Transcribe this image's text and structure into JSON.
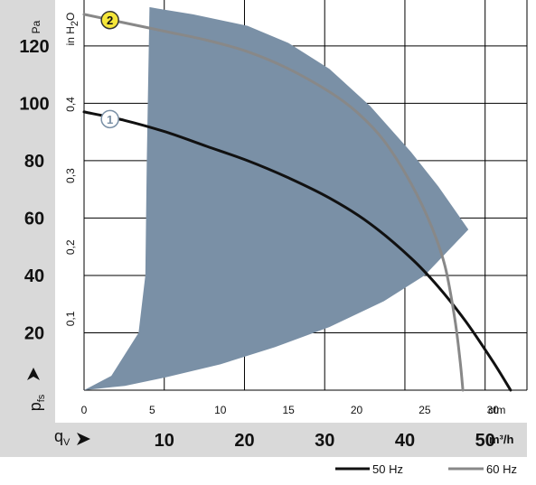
{
  "chart_data": {
    "type": "line",
    "y_left": {
      "label": "Pa",
      "symbol": "p",
      "subscript": "fs",
      "range": [
        0,
        136
      ],
      "ticks": [
        20,
        40,
        60,
        80,
        100,
        120
      ]
    },
    "y_right": {
      "label_main": "in H",
      "label_sub": "2",
      "label_end": "O",
      "range": [
        0,
        0.546
      ],
      "ticks": [
        "0,1",
        "0,2",
        "0,3",
        "0,4"
      ],
      "tick_values": [
        0.1,
        0.2,
        0.3,
        0.4
      ]
    },
    "x_cfm": {
      "label": "cfm",
      "range": [
        0,
        32.5
      ],
      "ticks": [
        0,
        5,
        10,
        15,
        20,
        25,
        30
      ]
    },
    "x_m3h": {
      "symbol": "q",
      "subscript": "V",
      "label": "m³/h",
      "ticks": [
        10,
        20,
        30,
        40,
        50
      ]
    },
    "operating_region": {
      "top_edge": [
        [
          4.8,
          133.5
        ],
        [
          5.4,
          133
        ],
        [
          8,
          131
        ],
        [
          12,
          127
        ],
        [
          15,
          121
        ],
        [
          18,
          112
        ],
        [
          21,
          99
        ],
        [
          24,
          83
        ],
        [
          26,
          71
        ],
        [
          28.2,
          56
        ]
      ],
      "bottom_edge": [
        [
          28.2,
          56
        ],
        [
          25,
          40
        ],
        [
          22,
          31
        ],
        [
          18,
          22
        ],
        [
          14,
          15
        ],
        [
          10,
          9
        ],
        [
          6,
          4.5
        ],
        [
          3,
          1.5
        ],
        [
          0,
          0
        ]
      ],
      "left_edge": [
        [
          0,
          0
        ],
        [
          2,
          5
        ],
        [
          4,
          20
        ],
        [
          4.5,
          40
        ],
        [
          4.6,
          80
        ],
        [
          4.8,
          133.5
        ]
      ]
    },
    "series": [
      {
        "name": "50 Hz",
        "marker": "1",
        "color": "#111111",
        "points": [
          [
            0,
            97
          ],
          [
            3,
            94
          ],
          [
            6,
            90
          ],
          [
            9,
            85
          ],
          [
            12,
            80
          ],
          [
            15,
            74
          ],
          [
            18,
            67
          ],
          [
            21,
            58
          ],
          [
            24,
            46
          ],
          [
            26,
            36
          ],
          [
            28,
            24
          ],
          [
            30,
            10
          ],
          [
            31.3,
            0
          ]
        ]
      },
      {
        "name": "60 Hz",
        "marker": "2",
        "color": "#888888",
        "points": [
          [
            0,
            131
          ],
          [
            3,
            128
          ],
          [
            6,
            125
          ],
          [
            9,
            122
          ],
          [
            12,
            118
          ],
          [
            15,
            112
          ],
          [
            18,
            104
          ],
          [
            20,
            97
          ],
          [
            22,
            87
          ],
          [
            24,
            72
          ],
          [
            25.5,
            57
          ],
          [
            26.5,
            43
          ],
          [
            27.2,
            25
          ],
          [
            27.6,
            10
          ],
          [
            27.8,
            0
          ]
        ]
      }
    ],
    "markers": [
      {
        "label": "1",
        "x": 1.9,
        "y": 94.5,
        "fill": "#ffffff",
        "stroke": "#7a90a6",
        "text_color": "#7a90a6"
      },
      {
        "label": "2",
        "x": 1.9,
        "y": 129,
        "fill": "#f5e63a",
        "stroke": "#333333",
        "text_color": "#111111"
      }
    ],
    "colors": {
      "region": "#7a90a6",
      "band": "#d9d9d9",
      "grid": "#000000"
    },
    "grid": true,
    "legend_position": "bottom-right"
  },
  "legend": [
    {
      "label": "50 Hz",
      "color": "#111111"
    },
    {
      "label": "60 Hz",
      "color": "#888888"
    }
  ]
}
